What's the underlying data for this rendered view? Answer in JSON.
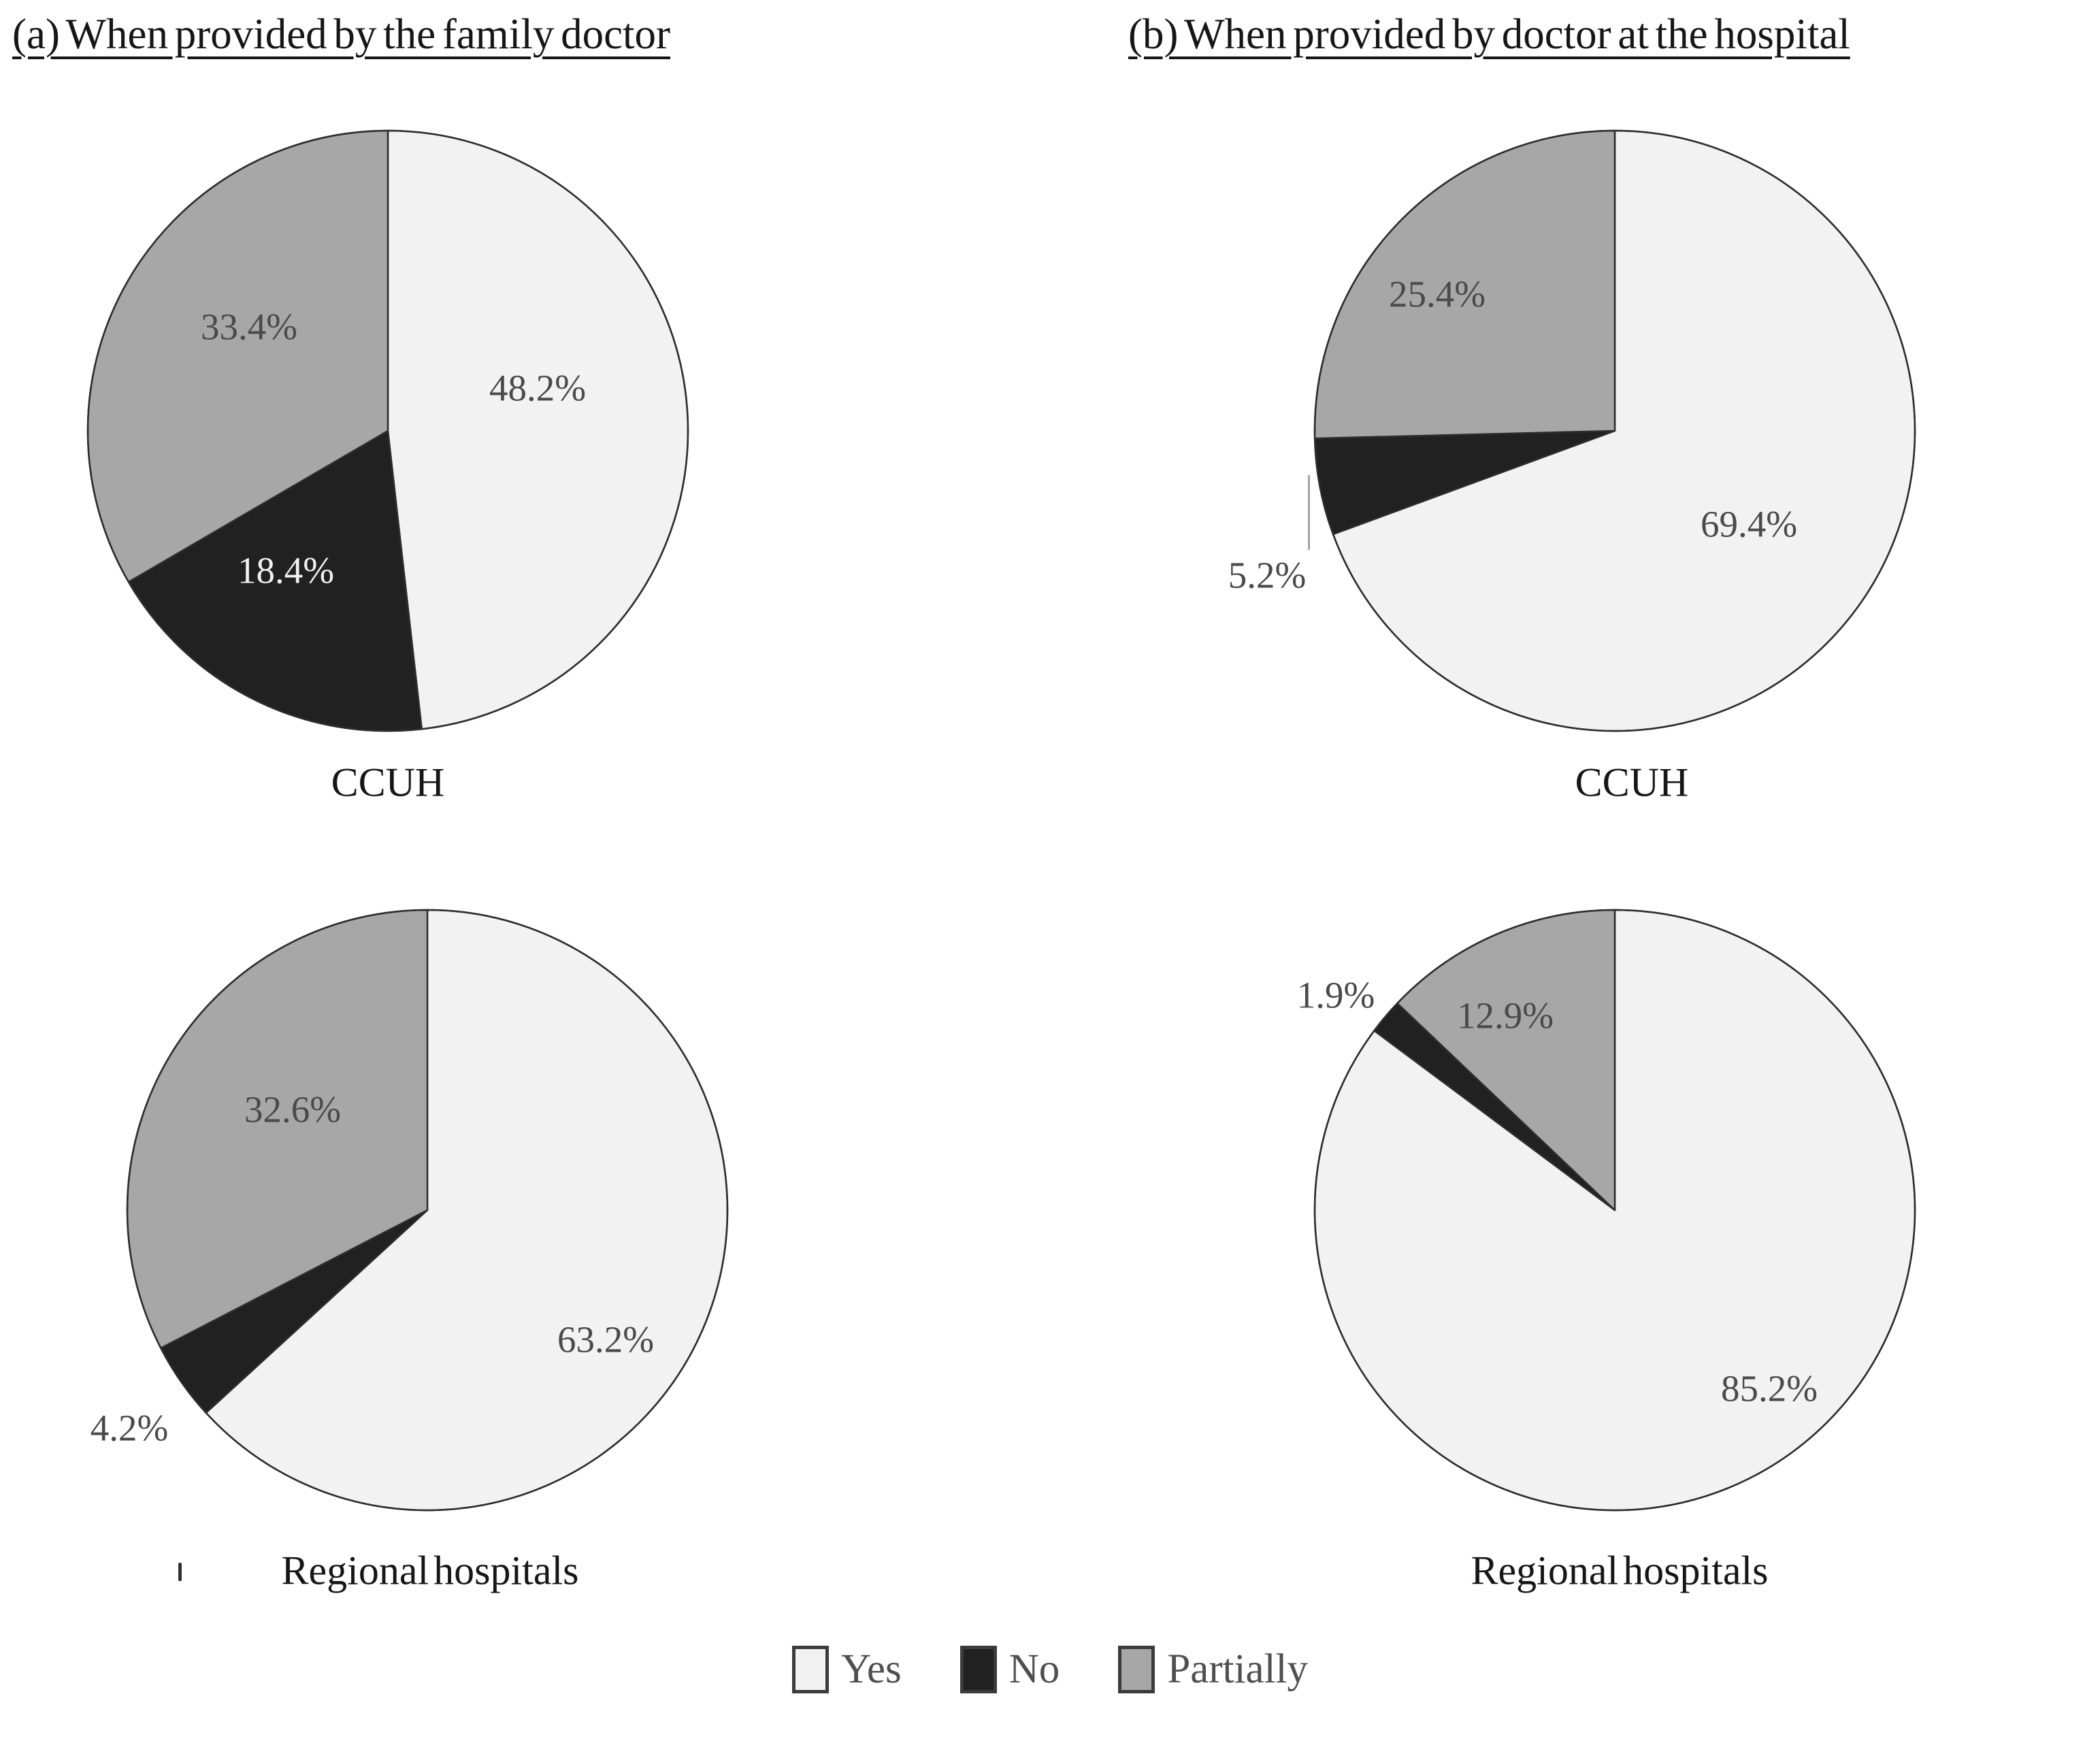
{
  "panels": [
    {
      "label": "(a) When provided by the family doctor"
    },
    {
      "label": "(b) When provided by doctor at the hospital"
    }
  ],
  "legend": {
    "items": [
      {
        "label": "Yes",
        "color": "#f2f2f2"
      },
      {
        "label": "No",
        "color": "#212121"
      },
      {
        "label": "Partially",
        "color": "#a7a7a7"
      }
    ]
  },
  "chart_data": [
    {
      "type": "pie",
      "panel": "(a) When provided by the family doctor",
      "title": "CCUH",
      "categories": [
        "Yes",
        "No",
        "Partially"
      ],
      "values": [
        48.2,
        18.4,
        33.4
      ],
      "labels": [
        "48.2%",
        "18.4%",
        "33.4%"
      ],
      "colors": [
        "#f2f2f2",
        "#212121",
        "#a7a7a7"
      ],
      "start_angle_deg": 0,
      "direction": "clockwise",
      "outline_color": "#2d2d2d"
    },
    {
      "type": "pie",
      "panel": "(b) When provided by doctor at the hospital",
      "title": "CCUH",
      "categories": [
        "Yes",
        "No",
        "Partially"
      ],
      "values": [
        69.4,
        5.2,
        25.4
      ],
      "labels": [
        "69.4%",
        "5.2%",
        "25.4%"
      ],
      "colors": [
        "#f2f2f2",
        "#212121",
        "#a7a7a7"
      ],
      "start_angle_deg": 0,
      "direction": "clockwise",
      "outline_color": "#2d2d2d"
    },
    {
      "type": "pie",
      "panel": "(a) When provided by the family doctor",
      "title": "Regional hospitals",
      "categories": [
        "Yes",
        "No",
        "Partially"
      ],
      "values": [
        63.2,
        4.2,
        32.6
      ],
      "labels": [
        "63.2%",
        "4.2%",
        "32.6%"
      ],
      "colors": [
        "#f2f2f2",
        "#212121",
        "#a7a7a7"
      ],
      "start_angle_deg": 0,
      "direction": "clockwise",
      "outline_color": "#2d2d2d"
    },
    {
      "type": "pie",
      "panel": "(b) When provided by doctor at the hospital",
      "title": "Regional hospitals",
      "categories": [
        "Yes",
        "No",
        "Partially"
      ],
      "values": [
        85.2,
        1.9,
        12.9
      ],
      "labels": [
        "85.2%",
        "1.9%",
        "12.9%"
      ],
      "colors": [
        "#f2f2f2",
        "#212121",
        "#a7a7a7"
      ],
      "start_angle_deg": 0,
      "direction": "clockwise",
      "outline_color": "#2d2d2d"
    }
  ]
}
